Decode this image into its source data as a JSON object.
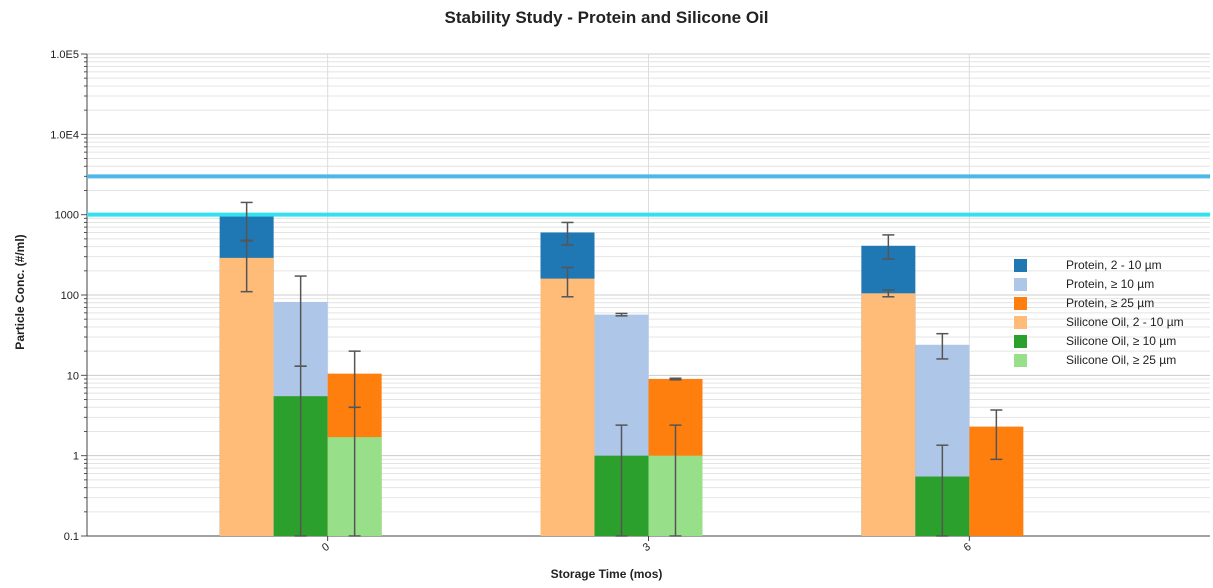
{
  "chart_data": {
    "type": "bar",
    "title": "Stability Study - Protein and Silicone Oil",
    "xlabel": "Storage Time (mos)",
    "ylabel": "Particle Conc. (#/ml)",
    "yscale": "log",
    "ylim": [
      0.1,
      100000
    ],
    "yticks": [
      "0.1",
      "1",
      "10",
      "100",
      "1000",
      "1.0E4",
      "1.0E5"
    ],
    "categories": [
      "0",
      "3",
      "6"
    ],
    "grid": true,
    "legend_position": "right",
    "stacks": [
      "2 - 10 µm",
      "≥ 10 µm",
      "≥ 25 µm"
    ],
    "series": [
      {
        "name": "Protein, 2 - 10 µm",
        "stack": "2 - 10 µm",
        "color": "#1f77b4",
        "values": [
          980,
          600,
          410
        ],
        "err_low": [
          480,
          420,
          280
        ],
        "err_high": [
          1420,
          800,
          560
        ]
      },
      {
        "name": "Protein, ≥ 10 µm",
        "stack": "≥ 10 µm",
        "color": "#aec7e8",
        "values": [
          82,
          57,
          24
        ],
        "err_low": [
          13,
          55,
          16
        ],
        "err_high": [
          172,
          59,
          33
        ]
      },
      {
        "name": "Protein, ≥ 25 µm",
        "stack": "≥ 25 µm",
        "color": "#ff7f0e",
        "values": [
          10.5,
          9,
          2.3
        ],
        "err_low": [
          4,
          8.8,
          0.9
        ],
        "err_high": [
          20,
          9.2,
          3.7
        ]
      },
      {
        "name": "Silicone Oil, 2 - 10 µm",
        "stack": "2 - 10 µm",
        "color": "#ffbb78",
        "values": [
          290,
          160,
          105
        ],
        "err_low": [
          110,
          95,
          95
        ],
        "err_high": [
          470,
          220,
          115
        ]
      },
      {
        "name": "Silicone Oil, ≥ 10 µm",
        "stack": "≥ 10 µm",
        "color": "#2ca02c",
        "values": [
          5.5,
          1,
          0.55
        ],
        "err_low": [
          0.1,
          0.1,
          0.1
        ],
        "err_high": [
          13,
          2.4,
          1.35
        ]
      },
      {
        "name": "Silicone Oil, ≥ 25 µm",
        "stack": "≥ 25 µm",
        "color": "#98df8a",
        "values": [
          1.7,
          1,
          null
        ],
        "err_low": [
          0.1,
          0.1,
          null
        ],
        "err_high": [
          4,
          2.4,
          null
        ]
      }
    ],
    "reference_lines": [
      {
        "value": 3000,
        "color": "#4db8e8"
      },
      {
        "value": 1000,
        "color": "#33e0f0"
      }
    ]
  }
}
